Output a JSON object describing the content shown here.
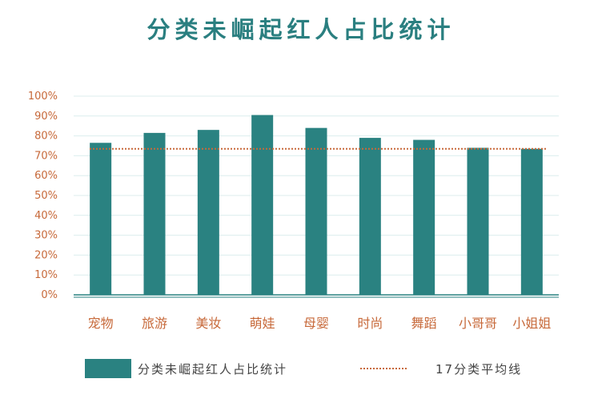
{
  "chart_data": {
    "type": "bar",
    "title": "分类未崛起红人占比统计",
    "categories": [
      "宠物",
      "旅游",
      "美妆",
      "萌娃",
      "母婴",
      "时尚",
      "舞蹈",
      "小哥哥",
      "小姐姐"
    ],
    "series": [
      {
        "name": "分类未崛起红人占比统计",
        "values": [
          76.5,
          81.5,
          83,
          90.5,
          84,
          79,
          78,
          74,
          73.5
        ]
      }
    ],
    "reference_line": {
      "name": "17分类平均线",
      "value": 73.5
    },
    "yticks": [
      "0%",
      "10%",
      "20%",
      "30%",
      "40%",
      "50%",
      "60%",
      "70%",
      "80%",
      "90%",
      "100%"
    ],
    "ylim": [
      0,
      100
    ],
    "grid": true,
    "legend_position": "bottom",
    "colors": {
      "bar": "#2a8281",
      "average_line": "#c7693a",
      "title": "#2a7f80",
      "tick_text": "#c7693a",
      "grid": "#dceeee"
    }
  }
}
